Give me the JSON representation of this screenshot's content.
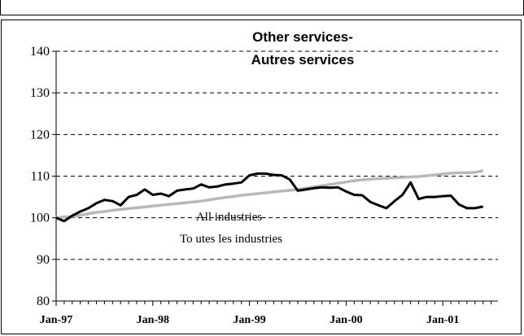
{
  "chart_data": {
    "type": "line",
    "title": "Other services-",
    "subtitle": "Autres services",
    "ylim": [
      80,
      140
    ],
    "yticks": [
      80,
      90,
      100,
      110,
      120,
      130,
      140
    ],
    "xticks": [
      "Jan-97",
      "Jan-98",
      "Jan-99",
      "Jan-00",
      "Jan-01"
    ],
    "grid": "horizontal dashed",
    "annotation": [
      "All industries-",
      "To utes les industries"
    ],
    "series": [
      {
        "color": "#000000",
        "values": [
          100.0,
          99.2,
          100.5,
          101.5,
          102.3,
          103.5,
          104.3,
          104.0,
          103.0,
          105.0,
          105.5,
          106.8,
          105.5,
          105.8,
          105.2,
          106.5,
          106.8,
          107.0,
          108.0,
          107.3,
          107.5,
          108.0,
          108.2,
          108.5,
          110.2,
          110.6,
          110.6,
          110.3,
          110.2,
          109.2,
          106.5,
          106.8,
          107.1,
          107.3,
          107.2,
          107.3,
          106.3,
          105.5,
          105.4,
          103.8,
          103.0,
          102.3,
          104.0,
          105.5,
          108.5,
          104.5,
          105.0,
          105.0,
          105.2,
          105.3,
          103.2,
          102.3,
          102.3,
          102.7
        ]
      },
      {
        "color": "#b8b8b8",
        "values": [
          100.0,
          100.2,
          100.3,
          100.6,
          101.0,
          101.3,
          101.5,
          101.8,
          102.0,
          102.2,
          102.4,
          102.6,
          102.8,
          103.0,
          103.2,
          103.4,
          103.6,
          103.8,
          104.0,
          104.3,
          104.6,
          104.9,
          105.1,
          105.4,
          105.6,
          105.8,
          106.0,
          106.2,
          106.4,
          106.6,
          106.8,
          107.1,
          107.4,
          107.7,
          108.0,
          108.3,
          108.6,
          108.9,
          109.1,
          109.3,
          109.4,
          109.5,
          109.6,
          109.7,
          109.8,
          109.9,
          110.1,
          110.3,
          110.5,
          110.7,
          110.8,
          110.8,
          110.9,
          111.3
        ]
      }
    ]
  }
}
